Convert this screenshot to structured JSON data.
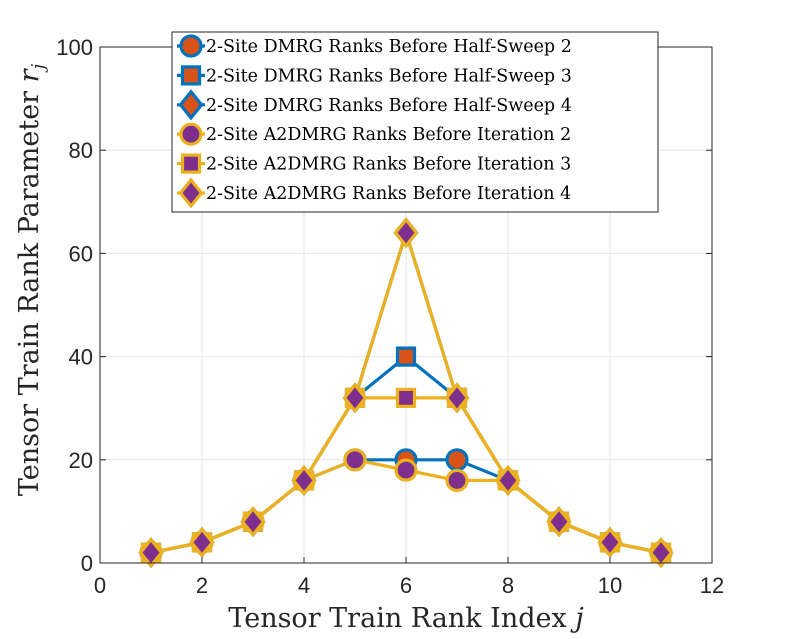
{
  "chart_data": {
    "type": "line",
    "title": "",
    "xlabel": "Tensor Train Rank Index j",
    "ylabel": "Tensor Train Rank Parameter r_j",
    "xlabel_parts": {
      "text": "Tensor Train Rank Index ",
      "var": "j"
    },
    "ylabel_parts": {
      "text": "Tensor Train Rank Parameter ",
      "var": "r",
      "sub": "j"
    },
    "xlim": [
      0,
      12
    ],
    "ylim": [
      0,
      100
    ],
    "xticks": [
      0,
      2,
      4,
      6,
      8,
      10,
      12
    ],
    "yticks": [
      0,
      20,
      40,
      60,
      80,
      100
    ],
    "xtick_labels": [
      "0",
      "2",
      "4",
      "6",
      "8",
      "10",
      "12"
    ],
    "ytick_labels": [
      "0",
      "20",
      "40",
      "60",
      "80",
      "100"
    ],
    "grid": true,
    "legend_position": "top",
    "x": [
      1,
      2,
      3,
      4,
      5,
      6,
      7,
      8,
      9,
      10,
      11
    ],
    "series": [
      {
        "name": "2-Site DMRG Ranks Before Half-Sweep 2",
        "marker": "circle",
        "line_color": "#0072BD",
        "fill_color": "#D95319",
        "values": [
          2,
          4,
          8,
          16,
          20,
          20,
          20,
          16,
          8,
          4,
          2
        ]
      },
      {
        "name": "2-Site DMRG Ranks Before Half-Sweep 3",
        "marker": "square",
        "line_color": "#0072BD",
        "fill_color": "#D95319",
        "values": [
          2,
          4,
          8,
          16,
          32,
          40,
          32,
          16,
          8,
          4,
          2
        ]
      },
      {
        "name": "2-Site DMRG Ranks Before Half-Sweep 4",
        "marker": "diamond",
        "line_color": "#0072BD",
        "fill_color": "#D95319",
        "values": [
          2,
          4,
          8,
          16,
          32,
          64,
          32,
          16,
          8,
          4,
          2
        ]
      },
      {
        "name": "2-Site A2DMRG Ranks Before Iteration 2",
        "marker": "circle",
        "line_color": "#EDB120",
        "fill_color": "#7E2F8E",
        "values": [
          2,
          4,
          8,
          16,
          20,
          18,
          16,
          16,
          8,
          4,
          2
        ]
      },
      {
        "name": "2-Site A2DMRG Ranks Before Iteration 3",
        "marker": "square",
        "line_color": "#EDB120",
        "fill_color": "#7E2F8E",
        "values": [
          2,
          4,
          8,
          16,
          32,
          32,
          32,
          16,
          8,
          4,
          2
        ]
      },
      {
        "name": "2-Site A2DMRG Ranks Before Iteration 4",
        "marker": "diamond",
        "line_color": "#EDB120",
        "fill_color": "#7E2F8E",
        "values": [
          2,
          4,
          8,
          16,
          32,
          64,
          32,
          16,
          8,
          4,
          2
        ]
      }
    ]
  }
}
